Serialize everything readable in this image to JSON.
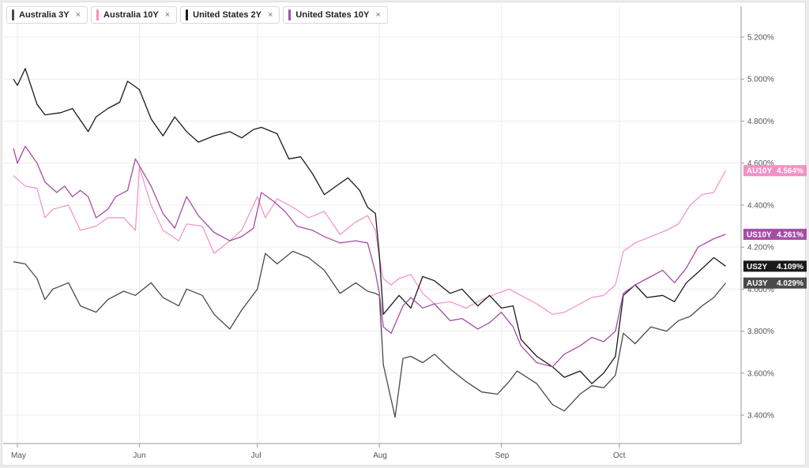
{
  "legend": [
    {
      "label": "Australia 3Y",
      "close": "×",
      "color": "#4a4a4a"
    },
    {
      "label": "Australia 10Y",
      "close": "×",
      "color": "#f48fc5"
    },
    {
      "label": "United States 2Y",
      "close": "×",
      "color": "#1a1a1a"
    },
    {
      "label": "United States 10Y",
      "close": "×",
      "color": "#a64ca6"
    }
  ],
  "chart_data": {
    "type": "line",
    "title": "",
    "xlabel": "",
    "ylabel": "",
    "ylim": [
      3.3,
      5.35
    ],
    "x_ticks": [
      "May",
      "Jun",
      "Jul",
      "Aug",
      "Sep",
      "Oct"
    ],
    "y_ticks": [
      "3.400%",
      "3.600%",
      "3.800%",
      "4.000%",
      "4.200%",
      "4.400%",
      "4.600%",
      "4.800%",
      "5.000%",
      "5.200%"
    ],
    "y_tick_values": [
      3.4,
      3.6,
      3.8,
      4.0,
      4.2,
      4.4,
      4.6,
      4.8,
      5.0,
      5.2
    ],
    "x_tick_dates": [
      "2024-05-01",
      "2024-06-01",
      "2024-07-01",
      "2024-08-01",
      "2024-09-01",
      "2024-10-01"
    ],
    "grid": true,
    "series": [
      {
        "name": "Australia 3Y",
        "tag": "AU3Y",
        "last_label": "4.029%",
        "last": 4.029,
        "color": "#4a4a4a",
        "width": 1.3,
        "points": [
          [
            "2024-04-30",
            4.13
          ],
          [
            "2024-05-03",
            4.12
          ],
          [
            "2024-05-06",
            4.05
          ],
          [
            "2024-05-08",
            3.95
          ],
          [
            "2024-05-10",
            4.0
          ],
          [
            "2024-05-14",
            4.03
          ],
          [
            "2024-05-17",
            3.92
          ],
          [
            "2024-05-21",
            3.89
          ],
          [
            "2024-05-24",
            3.95
          ],
          [
            "2024-05-28",
            3.99
          ],
          [
            "2024-05-31",
            3.97
          ],
          [
            "2024-06-04",
            4.03
          ],
          [
            "2024-06-07",
            3.96
          ],
          [
            "2024-06-11",
            3.92
          ],
          [
            "2024-06-13",
            4.0
          ],
          [
            "2024-06-17",
            3.97
          ],
          [
            "2024-06-20",
            3.88
          ],
          [
            "2024-06-24",
            3.81
          ],
          [
            "2024-06-27",
            3.9
          ],
          [
            "2024-07-01",
            4.0
          ],
          [
            "2024-07-03",
            4.17
          ],
          [
            "2024-07-06",
            4.12
          ],
          [
            "2024-07-10",
            4.18
          ],
          [
            "2024-07-14",
            4.15
          ],
          [
            "2024-07-18",
            4.09
          ],
          [
            "2024-07-22",
            3.98
          ],
          [
            "2024-07-26",
            4.03
          ],
          [
            "2024-07-29",
            3.99
          ],
          [
            "2024-07-31",
            3.98
          ],
          [
            "2024-08-01",
            3.97
          ],
          [
            "2024-08-02",
            3.64
          ],
          [
            "2024-08-05",
            3.39
          ],
          [
            "2024-08-07",
            3.67
          ],
          [
            "2024-08-09",
            3.68
          ],
          [
            "2024-08-12",
            3.65
          ],
          [
            "2024-08-15",
            3.69
          ],
          [
            "2024-08-19",
            3.62
          ],
          [
            "2024-08-23",
            3.56
          ],
          [
            "2024-08-27",
            3.51
          ],
          [
            "2024-08-31",
            3.5
          ],
          [
            "2024-09-03",
            3.56
          ],
          [
            "2024-09-05",
            3.61
          ],
          [
            "2024-09-10",
            3.55
          ],
          [
            "2024-09-14",
            3.45
          ],
          [
            "2024-09-17",
            3.42
          ],
          [
            "2024-09-21",
            3.5
          ],
          [
            "2024-09-24",
            3.54
          ],
          [
            "2024-09-27",
            3.53
          ],
          [
            "2024-09-30",
            3.59
          ],
          [
            "2024-10-02",
            3.79
          ],
          [
            "2024-10-05",
            3.74
          ],
          [
            "2024-10-09",
            3.82
          ],
          [
            "2024-10-13",
            3.8
          ],
          [
            "2024-10-16",
            3.85
          ],
          [
            "2024-10-19",
            3.87
          ],
          [
            "2024-10-22",
            3.92
          ],
          [
            "2024-10-25",
            3.96
          ],
          [
            "2024-10-28",
            4.029
          ]
        ]
      },
      {
        "name": "Australia 10Y",
        "tag": "AU10Y",
        "last_label": "4.564%",
        "last": 4.564,
        "color": "#f48fc5",
        "width": 1.2,
        "points": [
          [
            "2024-04-30",
            4.54
          ],
          [
            "2024-05-03",
            4.49
          ],
          [
            "2024-05-06",
            4.48
          ],
          [
            "2024-05-08",
            4.34
          ],
          [
            "2024-05-10",
            4.38
          ],
          [
            "2024-05-14",
            4.4
          ],
          [
            "2024-05-17",
            4.28
          ],
          [
            "2024-05-21",
            4.3
          ],
          [
            "2024-05-24",
            4.34
          ],
          [
            "2024-05-28",
            4.34
          ],
          [
            "2024-05-31",
            4.28
          ],
          [
            "2024-06-01",
            4.58
          ],
          [
            "2024-06-04",
            4.4
          ],
          [
            "2024-06-07",
            4.28
          ],
          [
            "2024-06-11",
            4.23
          ],
          [
            "2024-06-13",
            4.31
          ],
          [
            "2024-06-17",
            4.3
          ],
          [
            "2024-06-20",
            4.17
          ],
          [
            "2024-06-24",
            4.23
          ],
          [
            "2024-06-27",
            4.28
          ],
          [
            "2024-07-01",
            4.44
          ],
          [
            "2024-07-03",
            4.34
          ],
          [
            "2024-07-06",
            4.43
          ],
          [
            "2024-07-10",
            4.39
          ],
          [
            "2024-07-14",
            4.34
          ],
          [
            "2024-07-18",
            4.37
          ],
          [
            "2024-07-22",
            4.26
          ],
          [
            "2024-07-26",
            4.32
          ],
          [
            "2024-07-29",
            4.35
          ],
          [
            "2024-07-31",
            4.28
          ],
          [
            "2024-08-01",
            4.15
          ],
          [
            "2024-08-02",
            4.05
          ],
          [
            "2024-08-04",
            4.02
          ],
          [
            "2024-08-06",
            4.05
          ],
          [
            "2024-08-09",
            4.07
          ],
          [
            "2024-08-12",
            3.98
          ],
          [
            "2024-08-15",
            3.93
          ],
          [
            "2024-08-19",
            3.94
          ],
          [
            "2024-08-23",
            3.91
          ],
          [
            "2024-08-27",
            3.95
          ],
          [
            "2024-08-31",
            3.98
          ],
          [
            "2024-09-03",
            4.0
          ],
          [
            "2024-09-05",
            3.98
          ],
          [
            "2024-09-10",
            3.93
          ],
          [
            "2024-09-14",
            3.88
          ],
          [
            "2024-09-17",
            3.89
          ],
          [
            "2024-09-21",
            3.93
          ],
          [
            "2024-09-24",
            3.96
          ],
          [
            "2024-09-27",
            3.97
          ],
          [
            "2024-09-30",
            4.02
          ],
          [
            "2024-10-02",
            4.18
          ],
          [
            "2024-10-05",
            4.22
          ],
          [
            "2024-10-09",
            4.25
          ],
          [
            "2024-10-13",
            4.28
          ],
          [
            "2024-10-16",
            4.31
          ],
          [
            "2024-10-19",
            4.4
          ],
          [
            "2024-10-22",
            4.45
          ],
          [
            "2024-10-25",
            4.46
          ],
          [
            "2024-10-28",
            4.564
          ]
        ]
      },
      {
        "name": "United States 2Y",
        "tag": "US2Y",
        "last_label": "4.109%",
        "last": 4.109,
        "color": "#1a1a1a",
        "width": 1.3,
        "points": [
          [
            "2024-04-30",
            5.0
          ],
          [
            "2024-05-01",
            4.97
          ],
          [
            "2024-05-03",
            5.05
          ],
          [
            "2024-05-06",
            4.88
          ],
          [
            "2024-05-08",
            4.83
          ],
          [
            "2024-05-12",
            4.84
          ],
          [
            "2024-05-15",
            4.86
          ],
          [
            "2024-05-19",
            4.75
          ],
          [
            "2024-05-21",
            4.82
          ],
          [
            "2024-05-24",
            4.86
          ],
          [
            "2024-05-27",
            4.89
          ],
          [
            "2024-05-29",
            4.99
          ],
          [
            "2024-06-01",
            4.95
          ],
          [
            "2024-06-04",
            4.81
          ],
          [
            "2024-06-07",
            4.73
          ],
          [
            "2024-06-10",
            4.82
          ],
          [
            "2024-06-13",
            4.75
          ],
          [
            "2024-06-16",
            4.7
          ],
          [
            "2024-06-20",
            4.73
          ],
          [
            "2024-06-24",
            4.75
          ],
          [
            "2024-06-27",
            4.72
          ],
          [
            "2024-06-30",
            4.76
          ],
          [
            "2024-07-02",
            4.77
          ],
          [
            "2024-07-06",
            4.74
          ],
          [
            "2024-07-09",
            4.62
          ],
          [
            "2024-07-12",
            4.63
          ],
          [
            "2024-07-15",
            4.55
          ],
          [
            "2024-07-18",
            4.45
          ],
          [
            "2024-07-21",
            4.49
          ],
          [
            "2024-07-24",
            4.53
          ],
          [
            "2024-07-27",
            4.47
          ],
          [
            "2024-07-29",
            4.39
          ],
          [
            "2024-07-31",
            4.36
          ],
          [
            "2024-08-01",
            4.16
          ],
          [
            "2024-08-02",
            3.88
          ],
          [
            "2024-08-06",
            3.97
          ],
          [
            "2024-08-09",
            3.91
          ],
          [
            "2024-08-12",
            4.06
          ],
          [
            "2024-08-15",
            4.04
          ],
          [
            "2024-08-19",
            3.98
          ],
          [
            "2024-08-22",
            4.0
          ],
          [
            "2024-08-26",
            3.92
          ],
          [
            "2024-08-29",
            3.97
          ],
          [
            "2024-09-01",
            3.91
          ],
          [
            "2024-09-04",
            3.92
          ],
          [
            "2024-09-06",
            3.76
          ],
          [
            "2024-09-10",
            3.68
          ],
          [
            "2024-09-14",
            3.63
          ],
          [
            "2024-09-17",
            3.58
          ],
          [
            "2024-09-21",
            3.61
          ],
          [
            "2024-09-24",
            3.55
          ],
          [
            "2024-09-27",
            3.6
          ],
          [
            "2024-09-30",
            3.68
          ],
          [
            "2024-10-02",
            3.97
          ],
          [
            "2024-10-05",
            4.02
          ],
          [
            "2024-10-08",
            3.96
          ],
          [
            "2024-10-12",
            3.97
          ],
          [
            "2024-10-15",
            3.94
          ],
          [
            "2024-10-18",
            4.03
          ],
          [
            "2024-10-21",
            4.08
          ],
          [
            "2024-10-25",
            4.15
          ],
          [
            "2024-10-28",
            4.109
          ]
        ]
      },
      {
        "name": "United States 10Y",
        "tag": "US10Y",
        "last_label": "4.261%",
        "last": 4.261,
        "color": "#a64ca6",
        "width": 1.3,
        "points": [
          [
            "2024-04-30",
            4.67
          ],
          [
            "2024-05-01",
            4.6
          ],
          [
            "2024-05-03",
            4.68
          ],
          [
            "2024-05-06",
            4.6
          ],
          [
            "2024-05-08",
            4.51
          ],
          [
            "2024-05-11",
            4.46
          ],
          [
            "2024-05-13",
            4.49
          ],
          [
            "2024-05-15",
            4.44
          ],
          [
            "2024-05-17",
            4.47
          ],
          [
            "2024-05-19",
            4.44
          ],
          [
            "2024-05-21",
            4.34
          ],
          [
            "2024-05-24",
            4.38
          ],
          [
            "2024-05-26",
            4.44
          ],
          [
            "2024-05-29",
            4.47
          ],
          [
            "2024-05-31",
            4.62
          ],
          [
            "2024-06-04",
            4.49
          ],
          [
            "2024-06-07",
            4.36
          ],
          [
            "2024-06-10",
            4.29
          ],
          [
            "2024-06-13",
            4.44
          ],
          [
            "2024-06-16",
            4.35
          ],
          [
            "2024-06-20",
            4.27
          ],
          [
            "2024-06-24",
            4.23
          ],
          [
            "2024-06-27",
            4.25
          ],
          [
            "2024-06-30",
            4.29
          ],
          [
            "2024-07-02",
            4.46
          ],
          [
            "2024-07-05",
            4.42
          ],
          [
            "2024-07-08",
            4.37
          ],
          [
            "2024-07-11",
            4.3
          ],
          [
            "2024-07-15",
            4.28
          ],
          [
            "2024-07-18",
            4.25
          ],
          [
            "2024-07-22",
            4.22
          ],
          [
            "2024-07-26",
            4.23
          ],
          [
            "2024-07-29",
            4.22
          ],
          [
            "2024-07-31",
            4.08
          ],
          [
            "2024-08-01",
            3.98
          ],
          [
            "2024-08-02",
            3.82
          ],
          [
            "2024-08-04",
            3.79
          ],
          [
            "2024-08-07",
            3.92
          ],
          [
            "2024-08-09",
            3.96
          ],
          [
            "2024-08-12",
            3.91
          ],
          [
            "2024-08-15",
            3.93
          ],
          [
            "2024-08-19",
            3.85
          ],
          [
            "2024-08-22",
            3.86
          ],
          [
            "2024-08-26",
            3.81
          ],
          [
            "2024-08-29",
            3.84
          ],
          [
            "2024-09-01",
            3.89
          ],
          [
            "2024-09-04",
            3.82
          ],
          [
            "2024-09-06",
            3.73
          ],
          [
            "2024-09-10",
            3.65
          ],
          [
            "2024-09-14",
            3.63
          ],
          [
            "2024-09-17",
            3.69
          ],
          [
            "2024-09-21",
            3.73
          ],
          [
            "2024-09-24",
            3.77
          ],
          [
            "2024-09-27",
            3.75
          ],
          [
            "2024-09-30",
            3.8
          ],
          [
            "2024-10-02",
            3.98
          ],
          [
            "2024-10-05",
            4.02
          ],
          [
            "2024-10-08",
            4.05
          ],
          [
            "2024-10-12",
            4.09
          ],
          [
            "2024-10-15",
            4.03
          ],
          [
            "2024-10-18",
            4.1
          ],
          [
            "2024-10-21",
            4.2
          ],
          [
            "2024-10-25",
            4.24
          ],
          [
            "2024-10-28",
            4.261
          ]
        ]
      }
    ]
  }
}
